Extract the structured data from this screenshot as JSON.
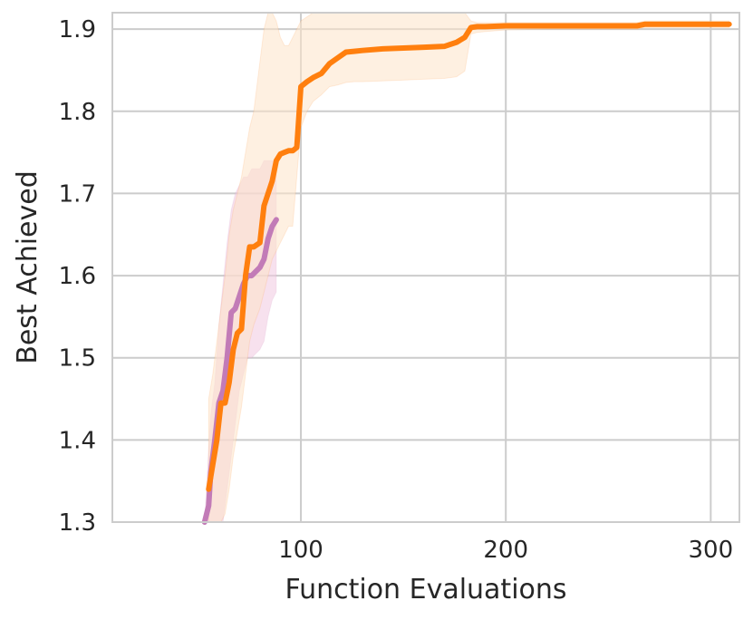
{
  "chart_data": {
    "type": "line",
    "title": "",
    "xlabel": "Function Evaluations",
    "ylabel": "Best Achieved",
    "xlim": [
      8,
      314
    ],
    "ylim": [
      1.3,
      1.92
    ],
    "x_ticks": [
      100,
      200,
      300
    ],
    "y_ticks": [
      1.3,
      1.4,
      1.5,
      1.6,
      1.7,
      1.8,
      1.9
    ],
    "x_tick_labels": [
      "100",
      "200",
      "300"
    ],
    "y_tick_labels": [
      "1.3",
      "1.4",
      "1.5",
      "1.6",
      "1.7",
      "1.8",
      "1.9"
    ],
    "grid": true,
    "legend": "none",
    "series": [
      {
        "color": "#c27bb7",
        "band_color": "#f0c8e0",
        "x": [
          53,
          55,
          56,
          58,
          60,
          62,
          64,
          66,
          68,
          70,
          72,
          74,
          76,
          78,
          80,
          82,
          84,
          86,
          88
        ],
        "y": [
          1.3,
          1.32,
          1.36,
          1.4,
          1.445,
          1.46,
          1.5,
          1.555,
          1.56,
          1.575,
          1.59,
          1.6,
          1.6,
          1.605,
          1.61,
          1.62,
          1.645,
          1.66,
          1.668
        ],
        "lower": [
          1.3,
          1.3,
          1.3,
          1.3,
          1.3,
          1.3,
          1.34,
          1.38,
          1.42,
          1.46,
          1.48,
          1.5,
          1.5,
          1.505,
          1.51,
          1.52,
          1.55,
          1.57,
          1.58
        ],
        "upper": [
          1.3,
          1.39,
          1.43,
          1.47,
          1.54,
          1.59,
          1.64,
          1.68,
          1.7,
          1.71,
          1.72,
          1.72,
          1.73,
          1.73,
          1.73,
          1.74,
          1.74,
          1.74,
          1.74
        ]
      },
      {
        "color": "#ff7f0e",
        "band_color": "#fde3c9",
        "x": [
          55,
          57,
          59,
          61,
          63,
          65,
          67,
          69,
          71,
          73,
          75,
          77,
          80,
          82,
          84,
          86,
          88,
          90,
          92,
          94,
          96,
          98,
          100,
          103,
          106,
          110,
          114,
          118,
          122,
          126,
          130,
          140,
          150,
          160,
          170,
          176,
          180,
          183,
          186,
          190,
          200,
          220,
          240,
          264,
          268,
          290,
          309
        ],
        "y": [
          1.34,
          1.37,
          1.4,
          1.445,
          1.445,
          1.47,
          1.51,
          1.53,
          1.535,
          1.6,
          1.635,
          1.635,
          1.64,
          1.685,
          1.7,
          1.715,
          1.74,
          1.748,
          1.75,
          1.752,
          1.752,
          1.756,
          1.83,
          1.836,
          1.841,
          1.846,
          1.858,
          1.865,
          1.872,
          1.873,
          1.874,
          1.876,
          1.877,
          1.878,
          1.879,
          1.884,
          1.89,
          1.902,
          1.903,
          1.903,
          1.904,
          1.904,
          1.904,
          1.904,
          1.906,
          1.906,
          1.906
        ],
        "lower": [
          1.3,
          1.3,
          1.3,
          1.3,
          1.31,
          1.34,
          1.38,
          1.41,
          1.44,
          1.48,
          1.52,
          1.54,
          1.56,
          1.58,
          1.6,
          1.62,
          1.63,
          1.64,
          1.65,
          1.66,
          1.66,
          1.72,
          1.78,
          1.8,
          1.812,
          1.82,
          1.83,
          1.832,
          1.835,
          1.836,
          1.836,
          1.837,
          1.838,
          1.839,
          1.84,
          1.842,
          1.849,
          1.894,
          1.896,
          1.897,
          1.899,
          1.9,
          1.9,
          1.9,
          1.902,
          1.902,
          1.902
        ],
        "upper": [
          1.45,
          1.48,
          1.52,
          1.56,
          1.6,
          1.65,
          1.68,
          1.7,
          1.72,
          1.75,
          1.78,
          1.8,
          1.86,
          1.9,
          1.92,
          1.92,
          1.91,
          1.89,
          1.88,
          1.88,
          1.89,
          1.9,
          1.91,
          1.915,
          1.92,
          1.92,
          1.92,
          1.92,
          1.92,
          1.92,
          1.92,
          1.92,
          1.92,
          1.92,
          1.92,
          1.92,
          1.92,
          1.91,
          1.908,
          1.908,
          1.908,
          1.908,
          1.908,
          1.908,
          1.91,
          1.91,
          1.91
        ]
      }
    ]
  }
}
